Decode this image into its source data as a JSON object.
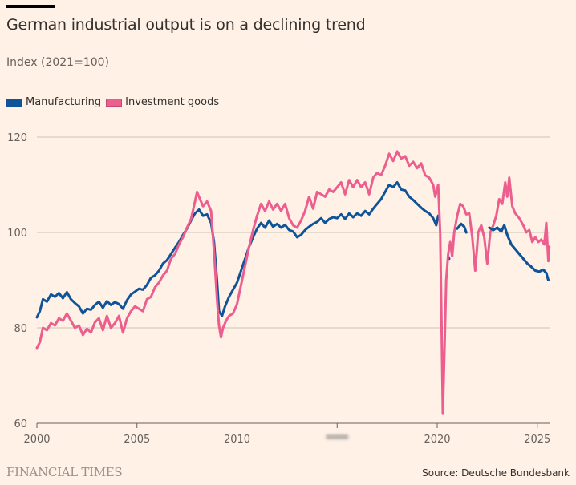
{
  "header": {
    "title": "German industrial output is on a declining trend",
    "subtitle": "Index (2021=100)"
  },
  "footer": {
    "brand": "FINANCIAL TIMES",
    "source": "Source: Deutsche Bundesbank"
  },
  "colors": {
    "background": "#fff1e5",
    "manufacturing": "#0f5499",
    "investment_goods": "#eb5e8d",
    "gridline": "#ccc1b7"
  },
  "chart_data": {
    "type": "line",
    "title": "German industrial output is on a declining trend",
    "subtitle": "Index (2021=100)",
    "xlabel": "",
    "ylabel": "Index (2021=100)",
    "xlim": [
      2000,
      2025.6
    ],
    "ylim": [
      60,
      120
    ],
    "yticks": [
      60,
      80,
      100,
      120
    ],
    "ytick_labels": [
      "60",
      "80",
      "100",
      "120"
    ],
    "xticks": [
      2000,
      2005,
      2010,
      2015,
      2020,
      2025
    ],
    "xtick_labels": [
      "2000",
      "2005",
      "2010",
      "",
      "2020",
      "2025"
    ],
    "grid": true,
    "legend_position": "top-left",
    "series": [
      {
        "name": "Manufacturing",
        "color": "#0f5499",
        "points": [
          [
            2000.0,
            82.2
          ],
          [
            2000.15,
            83.5
          ],
          [
            2000.3,
            86.0
          ],
          [
            2000.5,
            85.5
          ],
          [
            2000.7,
            87.0
          ],
          [
            2000.9,
            86.5
          ],
          [
            2001.1,
            87.3
          ],
          [
            2001.3,
            86.2
          ],
          [
            2001.5,
            87.5
          ],
          [
            2001.7,
            86.0
          ],
          [
            2001.9,
            85.2
          ],
          [
            2002.1,
            84.5
          ],
          [
            2002.3,
            83.0
          ],
          [
            2002.5,
            84.0
          ],
          [
            2002.7,
            83.8
          ],
          [
            2002.9,
            84.8
          ],
          [
            2003.1,
            85.5
          ],
          [
            2003.3,
            84.2
          ],
          [
            2003.5,
            85.6
          ],
          [
            2003.7,
            84.8
          ],
          [
            2003.9,
            85.4
          ],
          [
            2004.1,
            85.0
          ],
          [
            2004.3,
            84.0
          ],
          [
            2004.5,
            85.8
          ],
          [
            2004.7,
            87.0
          ],
          [
            2004.9,
            87.6
          ],
          [
            2005.1,
            88.2
          ],
          [
            2005.3,
            88.0
          ],
          [
            2005.5,
            89.0
          ],
          [
            2005.7,
            90.5
          ],
          [
            2005.9,
            91.0
          ],
          [
            2006.1,
            92.0
          ],
          [
            2006.3,
            93.5
          ],
          [
            2006.5,
            94.2
          ],
          [
            2006.7,
            95.5
          ],
          [
            2006.9,
            96.8
          ],
          [
            2007.1,
            98.0
          ],
          [
            2007.3,
            99.5
          ],
          [
            2007.5,
            100.8
          ],
          [
            2007.7,
            102.5
          ],
          [
            2007.9,
            104.0
          ],
          [
            2008.1,
            104.8
          ],
          [
            2008.3,
            103.5
          ],
          [
            2008.5,
            103.8
          ],
          [
            2008.7,
            102.0
          ],
          [
            2008.85,
            98.0
          ],
          [
            2009.0,
            90.0
          ],
          [
            2009.1,
            83.5
          ],
          [
            2009.25,
            82.5
          ],
          [
            2009.4,
            84.5
          ],
          [
            2009.6,
            86.5
          ],
          [
            2009.8,
            88.0
          ],
          [
            2010.0,
            89.5
          ],
          [
            2010.2,
            92.0
          ],
          [
            2010.4,
            94.5
          ],
          [
            2010.6,
            97.0
          ],
          [
            2010.8,
            99.0
          ],
          [
            2011.0,
            100.8
          ],
          [
            2011.2,
            102.0
          ],
          [
            2011.4,
            101.0
          ],
          [
            2011.6,
            102.5
          ],
          [
            2011.8,
            101.2
          ],
          [
            2012.0,
            101.8
          ],
          [
            2012.2,
            101.0
          ],
          [
            2012.4,
            101.6
          ],
          [
            2012.6,
            100.5
          ],
          [
            2012.8,
            100.2
          ],
          [
            2013.0,
            99.0
          ],
          [
            2013.2,
            99.5
          ],
          [
            2013.4,
            100.5
          ],
          [
            2013.6,
            101.2
          ],
          [
            2013.8,
            101.8
          ],
          [
            2014.0,
            102.2
          ],
          [
            2014.2,
            103.0
          ],
          [
            2014.4,
            102.0
          ],
          [
            2014.6,
            102.8
          ],
          [
            2014.8,
            103.2
          ],
          [
            2015.0,
            103.0
          ],
          [
            2015.2,
            103.8
          ],
          [
            2015.4,
            102.8
          ],
          [
            2015.6,
            104.0
          ],
          [
            2015.8,
            103.2
          ],
          [
            2016.0,
            104.0
          ],
          [
            2016.2,
            103.5
          ],
          [
            2016.4,
            104.5
          ],
          [
            2016.6,
            103.8
          ],
          [
            2016.8,
            105.0
          ],
          [
            2017.0,
            106.0
          ],
          [
            2017.2,
            107.0
          ],
          [
            2017.4,
            108.5
          ],
          [
            2017.6,
            110.0
          ],
          [
            2017.8,
            109.5
          ],
          [
            2018.0,
            110.5
          ],
          [
            2018.2,
            109.0
          ],
          [
            2018.4,
            108.8
          ],
          [
            2018.6,
            107.5
          ],
          [
            2018.8,
            106.8
          ],
          [
            2019.0,
            106.0
          ],
          [
            2019.2,
            105.2
          ],
          [
            2019.4,
            104.5
          ],
          [
            2019.6,
            104.0
          ],
          [
            2019.8,
            103.0
          ],
          [
            2019.95,
            101.5
          ],
          [
            2020.05,
            103.5
          ]
        ],
        "segments_after_gap": [
          [
            2020.55,
            95.0
          ],
          [
            2020.6,
            94.5
          ]
        ],
        "points_late": [
          [
            2021.0,
            100.8
          ],
          [
            2021.2,
            101.8
          ],
          [
            2021.35,
            101.2
          ],
          [
            2021.45,
            100.0
          ]
        ],
        "points_tail": [
          [
            2022.6,
            101.0
          ],
          [
            2022.8,
            100.5
          ],
          [
            2023.0,
            101.0
          ],
          [
            2023.2,
            100.2
          ],
          [
            2023.35,
            101.5
          ],
          [
            2023.5,
            99.5
          ],
          [
            2023.7,
            97.5
          ],
          [
            2023.9,
            96.5
          ],
          [
            2024.1,
            95.5
          ],
          [
            2024.3,
            94.5
          ],
          [
            2024.5,
            93.5
          ],
          [
            2024.7,
            92.8
          ],
          [
            2024.9,
            92.0
          ],
          [
            2025.1,
            91.8
          ],
          [
            2025.3,
            92.2
          ],
          [
            2025.45,
            91.5
          ],
          [
            2025.55,
            90.0
          ]
        ]
      },
      {
        "name": "Investment goods",
        "color": "#eb5e8d",
        "points": [
          [
            2000.0,
            75.8
          ],
          [
            2000.15,
            77.0
          ],
          [
            2000.3,
            80.0
          ],
          [
            2000.5,
            79.5
          ],
          [
            2000.7,
            81.0
          ],
          [
            2000.9,
            80.5
          ],
          [
            2001.1,
            82.0
          ],
          [
            2001.3,
            81.5
          ],
          [
            2001.5,
            83.0
          ],
          [
            2001.7,
            81.5
          ],
          [
            2001.9,
            80.0
          ],
          [
            2002.1,
            80.5
          ],
          [
            2002.3,
            78.5
          ],
          [
            2002.5,
            79.8
          ],
          [
            2002.7,
            79.0
          ],
          [
            2002.9,
            81.2
          ],
          [
            2003.1,
            82.0
          ],
          [
            2003.3,
            79.5
          ],
          [
            2003.5,
            82.5
          ],
          [
            2003.7,
            80.0
          ],
          [
            2003.9,
            81.0
          ],
          [
            2004.1,
            82.5
          ],
          [
            2004.3,
            79.0
          ],
          [
            2004.5,
            82.0
          ],
          [
            2004.7,
            83.5
          ],
          [
            2004.9,
            84.5
          ],
          [
            2005.1,
            84.0
          ],
          [
            2005.3,
            83.5
          ],
          [
            2005.5,
            86.0
          ],
          [
            2005.7,
            86.5
          ],
          [
            2005.9,
            88.5
          ],
          [
            2006.1,
            89.5
          ],
          [
            2006.3,
            91.0
          ],
          [
            2006.5,
            92.0
          ],
          [
            2006.7,
            94.5
          ],
          [
            2006.9,
            95.5
          ],
          [
            2007.1,
            97.5
          ],
          [
            2007.3,
            99.0
          ],
          [
            2007.5,
            101.0
          ],
          [
            2007.7,
            102.8
          ],
          [
            2007.9,
            106.5
          ],
          [
            2008.0,
            108.5
          ],
          [
            2008.15,
            107.0
          ],
          [
            2008.3,
            105.5
          ],
          [
            2008.5,
            106.5
          ],
          [
            2008.7,
            104.5
          ],
          [
            2008.85,
            96.0
          ],
          [
            2009.0,
            86.0
          ],
          [
            2009.1,
            80.5
          ],
          [
            2009.2,
            78.0
          ],
          [
            2009.3,
            80.0
          ],
          [
            2009.45,
            81.5
          ],
          [
            2009.6,
            82.5
          ],
          [
            2009.8,
            83.0
          ],
          [
            2010.0,
            85.0
          ],
          [
            2010.2,
            89.0
          ],
          [
            2010.4,
            93.0
          ],
          [
            2010.6,
            97.0
          ],
          [
            2010.8,
            100.5
          ],
          [
            2011.0,
            103.5
          ],
          [
            2011.2,
            106.0
          ],
          [
            2011.4,
            104.5
          ],
          [
            2011.6,
            106.5
          ],
          [
            2011.8,
            104.8
          ],
          [
            2012.0,
            106.0
          ],
          [
            2012.2,
            104.5
          ],
          [
            2012.4,
            106.0
          ],
          [
            2012.6,
            103.0
          ],
          [
            2012.8,
            101.5
          ],
          [
            2013.0,
            101.0
          ],
          [
            2013.2,
            102.5
          ],
          [
            2013.4,
            104.5
          ],
          [
            2013.6,
            107.5
          ],
          [
            2013.8,
            105.0
          ],
          [
            2014.0,
            108.5
          ],
          [
            2014.2,
            108.0
          ],
          [
            2014.4,
            107.5
          ],
          [
            2014.6,
            109.0
          ],
          [
            2014.8,
            108.5
          ],
          [
            2015.0,
            109.5
          ],
          [
            2015.2,
            110.5
          ],
          [
            2015.4,
            108.0
          ],
          [
            2015.6,
            111.0
          ],
          [
            2015.8,
            109.5
          ],
          [
            2016.0,
            111.0
          ],
          [
            2016.2,
            109.5
          ],
          [
            2016.4,
            110.5
          ],
          [
            2016.6,
            108.0
          ],
          [
            2016.8,
            111.5
          ],
          [
            2017.0,
            112.5
          ],
          [
            2017.2,
            112.0
          ],
          [
            2017.4,
            114.0
          ],
          [
            2017.6,
            116.5
          ],
          [
            2017.8,
            115.0
          ],
          [
            2018.0,
            117.0
          ],
          [
            2018.2,
            115.5
          ],
          [
            2018.4,
            116.0
          ],
          [
            2018.6,
            114.0
          ],
          [
            2018.8,
            114.8
          ],
          [
            2019.0,
            113.5
          ],
          [
            2019.2,
            114.5
          ],
          [
            2019.4,
            112.0
          ],
          [
            2019.6,
            111.5
          ],
          [
            2019.8,
            110.0
          ],
          [
            2019.9,
            107.5
          ],
          [
            2020.05,
            110.0
          ],
          [
            2020.15,
            100.0
          ],
          [
            2020.22,
            80.0
          ],
          [
            2020.28,
            62.0
          ],
          [
            2020.36,
            75.0
          ],
          [
            2020.45,
            90.0
          ],
          [
            2020.55,
            95.5
          ],
          [
            2020.65,
            98.0
          ],
          [
            2020.75,
            95.0
          ],
          [
            2020.85,
            100.0
          ],
          [
            2021.0,
            103.5
          ],
          [
            2021.15,
            106.0
          ],
          [
            2021.3,
            105.5
          ],
          [
            2021.45,
            103.8
          ],
          [
            2021.6,
            104.0
          ],
          [
            2021.75,
            99.0
          ],
          [
            2021.9,
            92.0
          ],
          [
            2022.05,
            100.0
          ],
          [
            2022.2,
            101.5
          ],
          [
            2022.35,
            99.0
          ],
          [
            2022.5,
            93.5
          ],
          [
            2022.65,
            100.0
          ],
          [
            2022.8,
            101.5
          ],
          [
            2022.95,
            103.5
          ],
          [
            2023.1,
            107.0
          ],
          [
            2023.25,
            106.0
          ],
          [
            2023.4,
            110.5
          ],
          [
            2023.5,
            107.5
          ],
          [
            2023.6,
            111.5
          ],
          [
            2023.75,
            105.5
          ],
          [
            2023.9,
            104.0
          ],
          [
            2024.1,
            103.0
          ],
          [
            2024.3,
            101.5
          ],
          [
            2024.45,
            100.0
          ],
          [
            2024.6,
            100.5
          ],
          [
            2024.75,
            98.0
          ],
          [
            2024.9,
            99.0
          ],
          [
            2025.05,
            98.0
          ],
          [
            2025.2,
            98.5
          ],
          [
            2025.35,
            97.5
          ],
          [
            2025.45,
            102.0
          ],
          [
            2025.55,
            94.0
          ],
          [
            2025.6,
            97.0
          ]
        ]
      }
    ]
  }
}
